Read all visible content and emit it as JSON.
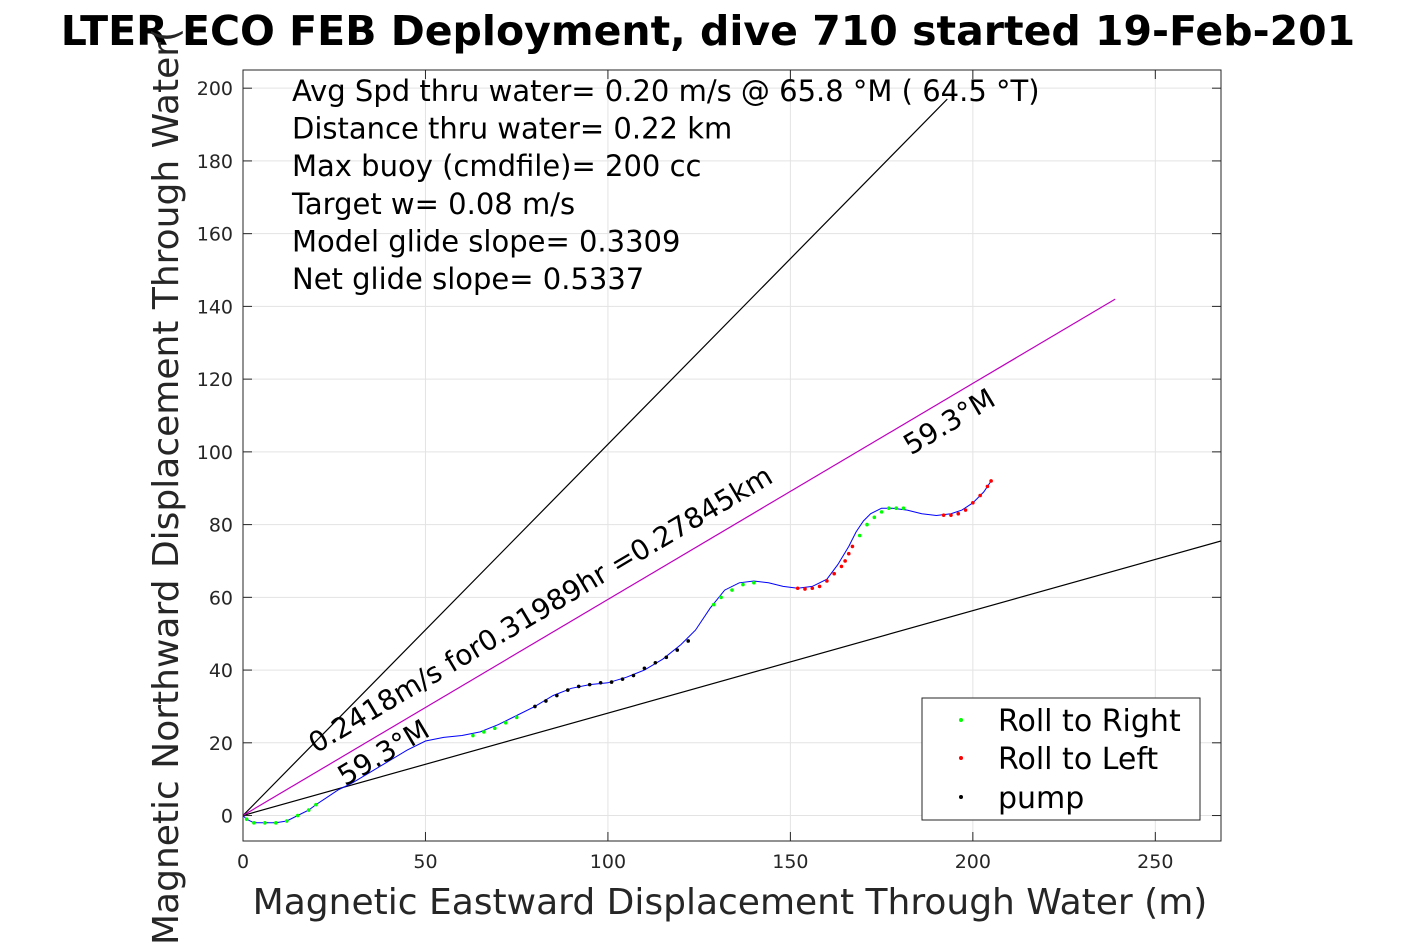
{
  "chart_data": {
    "type": "line",
    "title": "LTER ECO FEB Deployment, dive 710 started 19-Feb-201",
    "xlabel": "Magnetic Eastward Displacement Through Water (m)",
    "ylabel": "Magnetic Northward Displacement Through Water(",
    "xlim": [
      0,
      268
    ],
    "ylim": [
      -7,
      205
    ],
    "xticks": [
      0,
      50,
      100,
      150,
      200,
      250
    ],
    "yticks": [
      0,
      20,
      40,
      60,
      80,
      100,
      120,
      140,
      160,
      180,
      200
    ],
    "grid": true,
    "info_lines": [
      "Avg Spd thru water=  0.20 m/s @  65.8 °M ( 64.5 °T)",
      "Distance thru water=  0.22 km",
      "Max buoy (cmdfile)= 200 cc",
      "Target w= 0.08 m/s",
      "Model glide slope= 0.3309",
      "Net glide slope= 0.5337"
    ],
    "annotations": [
      {
        "text": "0.2418m/s for0.31989hr =0.27845km",
        "x": 20,
        "y": 17,
        "angle_deg": 30.7
      },
      {
        "text": "59.3°M",
        "x": 28,
        "y": 8,
        "angle_deg": 30.7
      },
      {
        "text": "59.3°M",
        "x": 183,
        "y": 99,
        "angle_deg": 30.7
      }
    ],
    "reference_lines": [
      {
        "name": "upper",
        "color": "#000000",
        "x": [
          0,
          193
        ],
        "y": [
          0,
          197
        ]
      },
      {
        "name": "lower",
        "color": "#000000",
        "x": [
          0,
          268
        ],
        "y": [
          0,
          75.5
        ]
      },
      {
        "name": "net heading",
        "color": "#bf00bf",
        "x": [
          0,
          239
        ],
        "y": [
          0,
          142
        ]
      }
    ],
    "track": {
      "color": "#0000ff",
      "x": [
        0,
        1,
        3,
        6,
        9,
        12,
        15,
        18,
        20,
        23,
        26,
        30,
        35,
        40,
        45,
        50,
        55,
        60,
        65,
        70,
        75,
        80,
        85,
        90,
        95,
        100,
        105,
        110,
        115,
        120,
        124,
        128,
        132,
        136,
        140,
        144,
        148,
        152,
        156,
        160,
        163,
        166,
        168,
        170,
        172,
        175,
        178,
        182,
        186,
        190,
        194,
        197,
        200,
        203,
        205
      ],
      "y": [
        0,
        -1,
        -2,
        -2,
        -2,
        -1.5,
        0,
        1.5,
        3,
        5,
        7,
        9,
        12,
        15,
        18,
        20.5,
        21.5,
        22,
        23,
        25,
        27.5,
        30,
        33,
        35,
        36,
        36.5,
        38,
        40,
        43,
        47,
        51,
        57,
        62,
        64,
        64.5,
        64,
        63,
        62.5,
        63,
        65,
        69,
        74,
        78,
        81,
        83,
        84.5,
        84.5,
        84,
        83,
        82.5,
        83,
        84,
        86,
        89,
        92
      ]
    },
    "series": [
      {
        "name": "Roll to Right",
        "color": "#00ff00",
        "x": [
          1,
          3,
          6,
          9,
          12,
          15,
          18,
          20,
          63,
          66,
          69,
          72,
          75,
          129,
          131,
          134,
          137,
          140,
          169,
          171,
          173,
          175,
          177,
          179,
          181
        ],
        "y": [
          -1,
          -2,
          -2,
          -2,
          -1.5,
          0,
          1.5,
          3,
          22,
          23,
          24,
          25.5,
          27,
          58,
          60,
          62,
          63.5,
          64,
          77,
          80,
          82,
          83.5,
          84.5,
          84.5,
          84.5
        ]
      },
      {
        "name": "Roll to Left",
        "color": "#ff0000",
        "x": [
          152,
          154,
          156,
          158,
          160,
          162,
          164,
          165,
          166,
          167,
          192,
          194,
          196,
          198,
          200,
          202,
          204,
          205
        ],
        "y": [
          62.5,
          62.3,
          62.5,
          63,
          64.5,
          66.5,
          68.5,
          70,
          72,
          74,
          82.6,
          82.6,
          83,
          84,
          86,
          88,
          90.5,
          92
        ]
      },
      {
        "name": "pump",
        "color": "#000000",
        "x": [
          80,
          83,
          86,
          89,
          92,
          95,
          98,
          101,
          104,
          107,
          110,
          113,
          116,
          119,
          122
        ],
        "y": [
          30,
          31.5,
          33,
          34.5,
          35.5,
          36,
          36.5,
          36.7,
          37.5,
          38.5,
          40.5,
          42,
          43.5,
          45.5,
          48
        ]
      }
    ],
    "legend": {
      "placement": "bottom-right",
      "entries": [
        "Roll to Right",
        "Roll to Left",
        "pump"
      ]
    }
  }
}
